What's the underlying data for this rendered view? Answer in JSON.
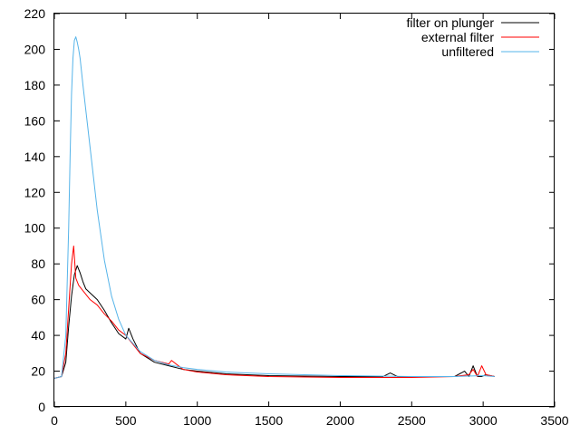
{
  "chart_data": {
    "type": "line",
    "title": "",
    "xlabel": "",
    "ylabel": "",
    "xlim": [
      0,
      3500
    ],
    "ylim": [
      0,
      220
    ],
    "x_ticks": [
      "0",
      "500",
      "1000",
      "1500",
      "2000",
      "2500",
      "3000",
      "3500"
    ],
    "y_ticks": [
      "0",
      "20",
      "40",
      "60",
      "80",
      "100",
      "120",
      "140",
      "160",
      "180",
      "200",
      "220"
    ],
    "grid": false,
    "legend_position": "top-right",
    "series": [
      {
        "name": "filter on plunger",
        "color": "#000000",
        "x": [
          0,
          50,
          80,
          100,
          120,
          140,
          160,
          180,
          200,
          220,
          260,
          300,
          350,
          400,
          450,
          500,
          520,
          550,
          600,
          700,
          800,
          900,
          1000,
          1200,
          1500,
          2000,
          2300,
          2350,
          2400,
          2500,
          2700,
          2800,
          2870,
          2900,
          2930,
          2960,
          2990,
          3020,
          3080
        ],
        "y": [
          16,
          17,
          25,
          45,
          62,
          74,
          79,
          75,
          70,
          66,
          63,
          60,
          54,
          47,
          41,
          38,
          44,
          38,
          30,
          25,
          23,
          21,
          20,
          18.5,
          17.5,
          17,
          17,
          19,
          17,
          17,
          17,
          17,
          20,
          17,
          23,
          17,
          17,
          18,
          17
        ]
      },
      {
        "name": "external filter",
        "color": "#ff0000",
        "x": [
          0,
          50,
          80,
          100,
          120,
          135,
          150,
          170,
          200,
          250,
          300,
          350,
          400,
          450,
          500,
          550,
          600,
          700,
          800,
          820,
          900,
          1000,
          1200,
          1500,
          2000,
          2500,
          2800,
          2900,
          2930,
          2960,
          2990,
          3020,
          3080
        ],
        "y": [
          16,
          17,
          30,
          55,
          80,
          90,
          72,
          68,
          65,
          60,
          57,
          52,
          48,
          43,
          40,
          35,
          30,
          26,
          24,
          26,
          21,
          19.5,
          18,
          17,
          16.5,
          16.5,
          17,
          18,
          21,
          17,
          23,
          18,
          17
        ]
      },
      {
        "name": "unfiltered",
        "color": "#56b4e9",
        "x": [
          0,
          50,
          80,
          100,
          110,
          120,
          130,
          140,
          150,
          160,
          170,
          180,
          200,
          250,
          300,
          350,
          400,
          450,
          500,
          600,
          700,
          800,
          900,
          1000,
          1200,
          1500,
          2000,
          2500,
          2800,
          3000,
          3080
        ],
        "y": [
          16,
          17,
          40,
          100,
          140,
          175,
          195,
          205,
          207,
          204,
          200,
          195,
          180,
          145,
          110,
          82,
          62,
          49,
          40,
          31,
          26,
          23.5,
          22,
          21,
          19.5,
          18.5,
          17.5,
          17,
          17,
          17.5,
          17
        ]
      }
    ]
  }
}
